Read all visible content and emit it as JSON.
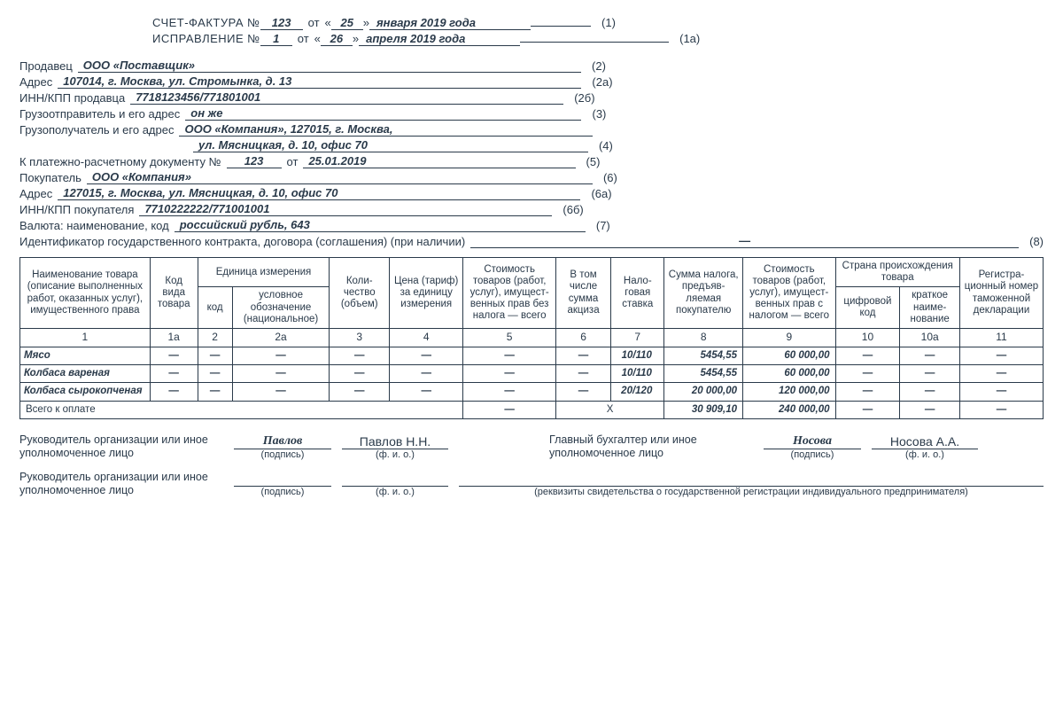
{
  "header": {
    "invoice_label": "СЧЕТ-ФАКТУРА №",
    "invoice_no": "123",
    "ot": "от",
    "q1": "«",
    "q2": "»",
    "invoice_day": "25",
    "invoice_month_year": "января 2019 года",
    "tag1": "(1)",
    "correction_label": "ИСПРАВЛЕНИЕ №",
    "correction_no": "1",
    "correction_day": "26",
    "correction_month_year": "апреля 2019 года",
    "tag1a": "(1а)"
  },
  "fields": {
    "seller_label": "Продавец",
    "seller": "ООО «Поставщик»",
    "tag2": "(2)",
    "addr_label": "Адрес",
    "seller_addr": "107014, г. Москва, ул. Стромынка, д. 13",
    "tag2a": "(2а)",
    "inn_seller_label": "ИНН/КПП продавца",
    "inn_seller": "7718123456/771801001",
    "tag2b": "(2б)",
    "shipper_label": "Грузоотправитель и его адрес",
    "shipper": "он же",
    "tag3": "(3)",
    "consignee_label": "Грузополучатель и его адрес",
    "consignee1": "ООО «Компания», 127015, г. Москва,",
    "consignee2": "ул. Мясницкая, д. 10, офис 70",
    "tag4": "(4)",
    "paydoc_label": "К платежно-расчетному документу №",
    "paydoc_no": "123",
    "paydoc_ot": "от",
    "paydoc_date": "25.01.2019",
    "tag5": "(5)",
    "buyer_label": "Покупатель",
    "buyer": "ООО «Компания»",
    "tag6": "(6)",
    "buyer_addr": "127015, г. Москва, ул. Мясницкая, д. 10, офис 70",
    "tag6a": "(6а)",
    "inn_buyer_label": "ИНН/КПП покупателя",
    "inn_buyer": "7710222222/771001001",
    "tag6b": "(6б)",
    "currency_label": "Валюта: наименование, код",
    "currency": "российский рубль, 643",
    "tag7": "(7)",
    "contract_label": "Идентификатор государственного контракта, договора (соглашения) (при наличии)",
    "contract": "—",
    "tag8": "(8)"
  },
  "table": {
    "headers": {
      "c1": "Наименование товара (описание выполненных работ, оказанных услуг), имущественного права",
      "c1a": "Код вида товара",
      "unit_group": "Единица измерения",
      "c2": "код",
      "c2a": "условное обозначение (национальное)",
      "c3": "Коли-\nчество (объем)",
      "c4": "Цена (тариф) за единицу измерения",
      "c5": "Стоимость товаров (работ, услуг), имущест-\nвенных прав без налога — всего",
      "c6": "В том числе сумма акциза",
      "c7": "Нало-\nговая ставка",
      "c8": "Сумма налога, предъяв-\nляемая покупателю",
      "c9": "Стоимость товаров (работ, услуг), имущест-\nвенных прав с налогом — всего",
      "origin_group": "Страна происхождения товара",
      "c10": "цифровой код",
      "c10a": "краткое наиме-\nнование",
      "c11": "Регистра-\nционный номер таможенной декларации"
    },
    "numrow": [
      "1",
      "1а",
      "2",
      "2а",
      "3",
      "4",
      "5",
      "6",
      "7",
      "8",
      "9",
      "10",
      "10а",
      "11"
    ],
    "rows": [
      {
        "name": "Мясо",
        "c1a": "—",
        "c2": "—",
        "c2a": "—",
        "c3": "—",
        "c4": "—",
        "c5": "—",
        "c6": "—",
        "c7": "10/110",
        "c8": "5454,55",
        "c9": "60 000,00",
        "c10": "—",
        "c10a": "—",
        "c11": "—"
      },
      {
        "name": "Колбаса вареная",
        "c1a": "—",
        "c2": "—",
        "c2a": "—",
        "c3": "—",
        "c4": "—",
        "c5": "—",
        "c6": "—",
        "c7": "10/110",
        "c8": "5454,55",
        "c9": "60 000,00",
        "c10": "—",
        "c10a": "—",
        "c11": "—"
      },
      {
        "name": "Колбаса сырокопченая",
        "c1a": "—",
        "c2": "—",
        "c2a": "—",
        "c3": "—",
        "c4": "—",
        "c5": "—",
        "c6": "—",
        "c7": "20/120",
        "c8": "20 000,00",
        "c9": "120 000,00",
        "c10": "—",
        "c10a": "—",
        "c11": "—"
      }
    ],
    "total": {
      "label": "Всего к оплате",
      "c5": "—",
      "c6x": "Х",
      "c8": "30 909,10",
      "c9": "240 000,00",
      "c10": "—",
      "c10a": "—",
      "c11": "—"
    }
  },
  "sign": {
    "head_label": "Руководитель организации или иное уполномоченное лицо",
    "acc_label": "Главный бухгалтер или иное уполномоченное лицо",
    "head_sig": "Павлов",
    "head_name": "Павлов Н.Н.",
    "acc_sig": "Носова",
    "acc_name": "Носова А.А.",
    "sig_cap": "(подпись)",
    "name_cap": "(ф. и. о.)",
    "ip_cap": "(реквизиты свидетельства о государственной регистрации индивидуального предпринимателя)"
  }
}
